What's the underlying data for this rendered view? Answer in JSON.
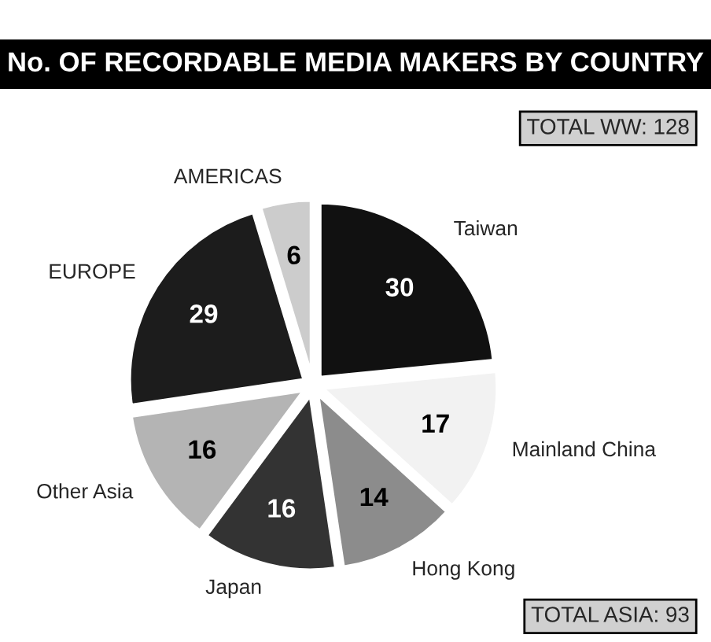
{
  "chart_data": {
    "type": "pie",
    "title": "No. OF RECORDABLE MEDIA MAKERS BY COUNTRY",
    "categories": [
      "Taiwan",
      "Mainland China",
      "Hong Kong",
      "Japan",
      "Other Asia",
      "EUROPE",
      "AMERICAS"
    ],
    "values": [
      30,
      17,
      14,
      16,
      16,
      29,
      6
    ],
    "colors": [
      "#111111",
      "#f2f2f2",
      "#8c8c8c",
      "#333333",
      "#b4b4b4",
      "#1c1c1c",
      "#cccccc"
    ],
    "data_labels": true,
    "annotations": [
      "TOTAL WW: 128",
      "TOTAL ASIA: 93"
    ]
  }
}
